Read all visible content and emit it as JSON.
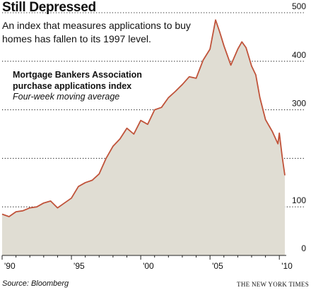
{
  "header": {
    "title": "Still Depressed",
    "subtitle": "An index that measures applications to buy homes has fallen to its 1997 level."
  },
  "chart_data": {
    "type": "area",
    "series_title": "Mortgage Bankers Association purchase applications index",
    "note": "Four-week moving average",
    "y_ticks": [
      0,
      100,
      200,
      300,
      400,
      500
    ],
    "y_tick_labels": [
      "0",
      "100",
      "",
      "300",
      "400",
      "500"
    ],
    "ylim": [
      0,
      500
    ],
    "x_ticks": [
      1990,
      1995,
      2000,
      2005,
      2010
    ],
    "x_tick_labels": [
      "'90",
      "'95",
      "'00",
      "'05",
      "'10"
    ],
    "xlim": [
      1990.0,
      2010.5
    ],
    "grid": "horizontal dotted",
    "colors": {
      "line": "#c0533a",
      "fill": "#e0ddd3"
    },
    "series": [
      {
        "x": [
          1990.0,
          1990.5,
          1991.0,
          1991.5,
          1992.0,
          1992.5,
          1993.0,
          1993.5,
          1994.0,
          1994.5,
          1995.0,
          1995.5,
          1996.0,
          1996.5,
          1997.0,
          1997.5,
          1998.0,
          1998.5,
          1999.0,
          1999.5,
          2000.0,
          2000.5,
          2001.0,
          2001.5,
          2002.0,
          2002.5,
          2003.0,
          2003.5,
          2004.0,
          2004.5,
          2005.0,
          2005.4,
          2005.7,
          2006.0,
          2006.5,
          2007.0,
          2007.3,
          2007.6,
          2008.0,
          2008.3,
          2008.6,
          2009.0,
          2009.5,
          2009.9,
          2010.0,
          2010.2,
          2010.4
        ],
        "values": [
          85,
          80,
          90,
          92,
          98,
          100,
          108,
          112,
          98,
          108,
          118,
          142,
          150,
          155,
          168,
          200,
          225,
          240,
          262,
          250,
          278,
          270,
          300,
          305,
          325,
          338,
          352,
          368,
          365,
          402,
          425,
          485,
          460,
          432,
          392,
          425,
          440,
          428,
          390,
          372,
          325,
          280,
          255,
          230,
          252,
          205,
          165
        ]
      }
    ]
  },
  "footer": {
    "source": "Source: Bloomberg",
    "credit": "THE NEW YORK TIMES"
  }
}
